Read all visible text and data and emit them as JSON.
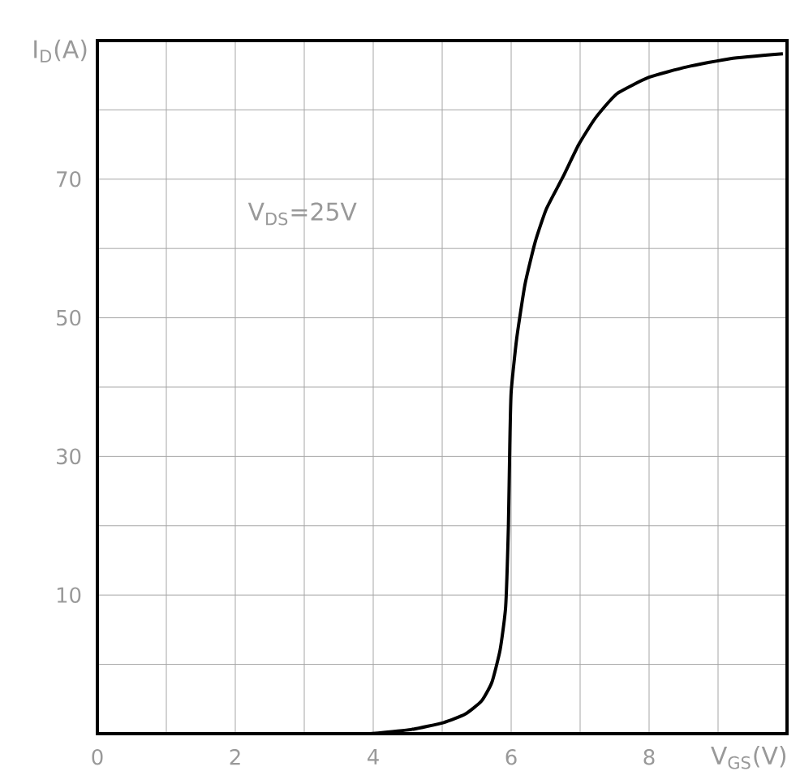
{
  "chart_data": {
    "type": "line",
    "xlabel": "V$_{GS}$(V)",
    "ylabel": "I$_{D}$(A)",
    "annotations": [
      "V$_{DS}$=25V"
    ],
    "x": [
      3.95,
      4.55,
      5.02,
      5.33,
      5.57,
      5.72,
      5.84,
      5.92,
      5.96,
      5.98,
      6.0,
      6.08,
      6.2,
      6.35,
      6.51,
      6.75,
      6.98,
      7.22,
      7.53,
      8.0,
      8.55,
      9.18,
      9.94
    ],
    "series": [
      {
        "color": "#000000",
        "values": [
          -10,
          -9.4,
          -8.4,
          -7.2,
          -5.3,
          -2.6,
          2.1,
          8.3,
          20,
          31.6,
          39.3,
          47,
          54.8,
          61,
          65.7,
          70.3,
          75,
          78.8,
          82.3,
          84.7,
          86.2,
          87.4,
          88.1
        ]
      }
    ],
    "xlim": [
      0,
      10
    ],
    "ylim": [
      -10,
      90
    ],
    "xticks": [
      0,
      {
        "value": 1,
        "label": null
      },
      2,
      {
        "value": 3,
        "label": null
      },
      4,
      {
        "value": 5,
        "label": null
      },
      6,
      {
        "value": 7,
        "label": null
      },
      8,
      {
        "value": 9,
        "label": null
      },
      {
        "value": 10,
        "label": null
      }
    ],
    "yticks": [
      {
        "value": -10,
        "label": null
      },
      {
        "value": 0,
        "label": null
      },
      10,
      {
        "value": 20,
        "label": null
      },
      30,
      {
        "value": 40,
        "label": null
      },
      50,
      {
        "value": 60,
        "label": null
      },
      70,
      {
        "value": 80,
        "label": null
      },
      {
        "value": 90,
        "label": null
      }
    ],
    "grid": true,
    "marker": "none",
    "line_style": "solid"
  }
}
